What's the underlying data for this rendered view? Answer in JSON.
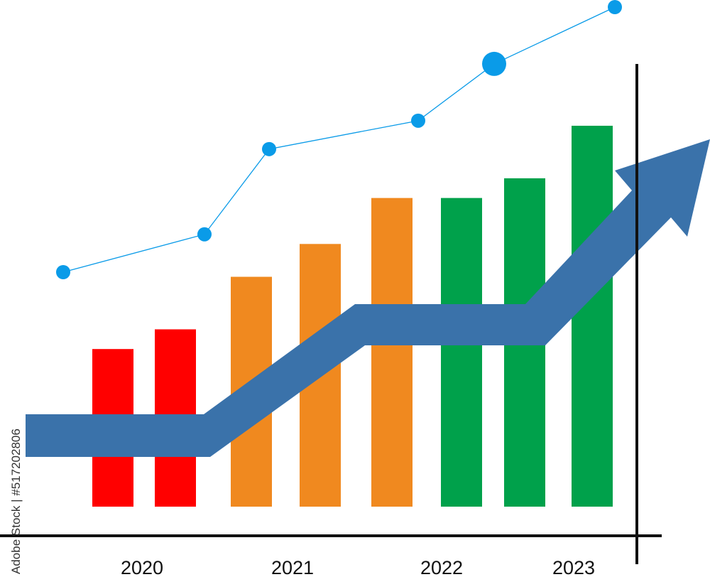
{
  "chart_data": {
    "type": "bar",
    "categories": [
      "2020",
      "2020",
      "2021",
      "2021",
      "2021",
      "2022",
      "2022",
      "2023"
    ],
    "x_axis_labels": [
      "2020",
      "2021",
      "2022",
      "2023"
    ],
    "series": [
      {
        "values": [
          24,
          27,
          35,
          40,
          47,
          47,
          50,
          58
        ],
        "colors": [
          "#ff0000",
          "#ff0000",
          "#f0891f",
          "#f0891f",
          "#f0891f",
          "#00a14b",
          "#00a14b",
          "#00a14b"
        ]
      }
    ],
    "line_series": {
      "color": "#0a9be8",
      "values": [
        34,
        38,
        47,
        50,
        56,
        62
      ]
    },
    "trend_arrow": {
      "color": "#3a72aa",
      "values": [
        12,
        12,
        28,
        28,
        62
      ]
    },
    "ylim": [
      0,
      62
    ],
    "grid": false,
    "legend": "none"
  },
  "watermark": {
    "text": "Adobe Stock | #517202806"
  }
}
